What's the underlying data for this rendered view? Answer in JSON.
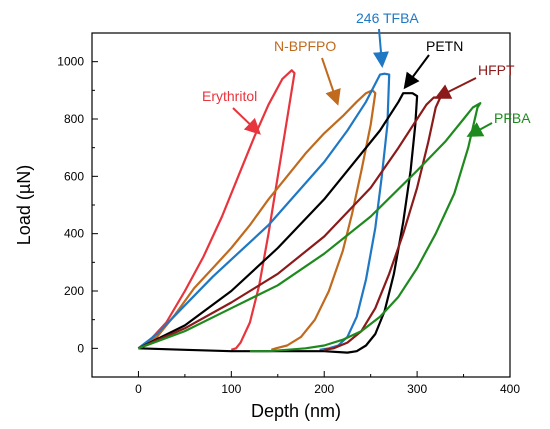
{
  "chart_data": {
    "type": "line",
    "title": "",
    "xlabel": "Depth (nm)",
    "ylabel": "Load (µN)",
    "xlim": [
      -50,
      400
    ],
    "ylim": [
      -100,
      1100
    ],
    "x_ticks": [
      0,
      100,
      200,
      300,
      400
    ],
    "y_ticks": [
      0,
      200,
      400,
      600,
      800,
      1000
    ],
    "grid": false,
    "legend": "none",
    "series": [
      {
        "name": "Erythritol",
        "color": "#e8343c",
        "x": [
          0,
          10,
          30,
          50,
          70,
          90,
          110,
          125,
          140,
          155,
          165,
          168,
          160,
          150,
          140,
          130,
          120,
          110,
          105,
          100
        ],
        "y": [
          0,
          20,
          90,
          200,
          320,
          460,
          620,
          740,
          850,
          940,
          970,
          960,
          800,
          600,
          400,
          220,
          90,
          20,
          0,
          -5
        ]
      },
      {
        "name": "N-BPFPO",
        "color": "#c06a1e",
        "x": [
          0,
          20,
          40,
          60,
          80,
          100,
          120,
          140,
          160,
          180,
          200,
          220,
          235,
          245,
          252,
          255,
          250,
          240,
          230,
          220,
          205,
          190,
          175,
          160,
          148,
          143
        ],
        "y": [
          0,
          40,
          120,
          210,
          280,
          350,
          430,
          520,
          600,
          680,
          750,
          810,
          860,
          890,
          900,
          890,
          780,
          620,
          470,
          340,
          200,
          100,
          40,
          10,
          0,
          -5
        ]
      },
      {
        "name": "246 TFBA",
        "color": "#1f78c4",
        "x": [
          0,
          20,
          50,
          80,
          110,
          140,
          170,
          200,
          225,
          245,
          260,
          265,
          270,
          268,
          262,
          255,
          245,
          235,
          225,
          215,
          205,
          195
        ],
        "y": [
          0,
          50,
          150,
          250,
          340,
          430,
          540,
          650,
          760,
          860,
          955,
          958,
          955,
          780,
          600,
          420,
          240,
          110,
          40,
          10,
          0,
          -5
        ]
      },
      {
        "name": "PETN",
        "color": "#000000",
        "x": [
          0,
          50,
          100,
          150,
          200,
          230,
          260,
          280,
          285,
          295,
          300,
          298,
          293,
          285,
          275,
          265,
          255,
          245,
          235,
          225,
          200,
          150,
          100,
          50,
          0
        ],
        "y": [
          0,
          80,
          200,
          350,
          520,
          640,
          760,
          860,
          890,
          890,
          880,
          780,
          620,
          440,
          260,
          130,
          50,
          10,
          -10,
          -15,
          -10,
          -10,
          -10,
          -5,
          0
        ]
      },
      {
        "name": "HFPT",
        "color": "#8b1a1a",
        "x": [
          0,
          50,
          100,
          150,
          200,
          250,
          280,
          300,
          310,
          318,
          325,
          320,
          312,
          300,
          285,
          270,
          255,
          240,
          225,
          210,
          200
        ],
        "y": [
          0,
          70,
          160,
          260,
          390,
          560,
          700,
          800,
          850,
          875,
          875,
          840,
          720,
          560,
          400,
          260,
          140,
          60,
          20,
          0,
          -5
        ]
      },
      {
        "name": "PFBA",
        "color": "#1e8a1e",
        "x": [
          0,
          50,
          100,
          150,
          200,
          250,
          300,
          330,
          350,
          360,
          368,
          365,
          355,
          340,
          320,
          300,
          280,
          260,
          240,
          220,
          200,
          180,
          160,
          140,
          120
        ],
        "y": [
          0,
          60,
          140,
          220,
          330,
          460,
          620,
          720,
          800,
          840,
          855,
          840,
          700,
          540,
          400,
          280,
          180,
          110,
          60,
          30,
          10,
          0,
          -5,
          -10,
          -10
        ]
      }
    ],
    "annotations": [
      {
        "text": "Erythritol",
        "color": "#e8343c"
      },
      {
        "text": "N-BPFPO",
        "color": "#c06a1e"
      },
      {
        "text": "246 TFBA",
        "color": "#1f78c4"
      },
      {
        "text": "PETN",
        "color": "#000000"
      },
      {
        "text": "HFPT",
        "color": "#8b1a1a"
      },
      {
        "text": "PFBA",
        "color": "#1e8a1e"
      }
    ]
  }
}
